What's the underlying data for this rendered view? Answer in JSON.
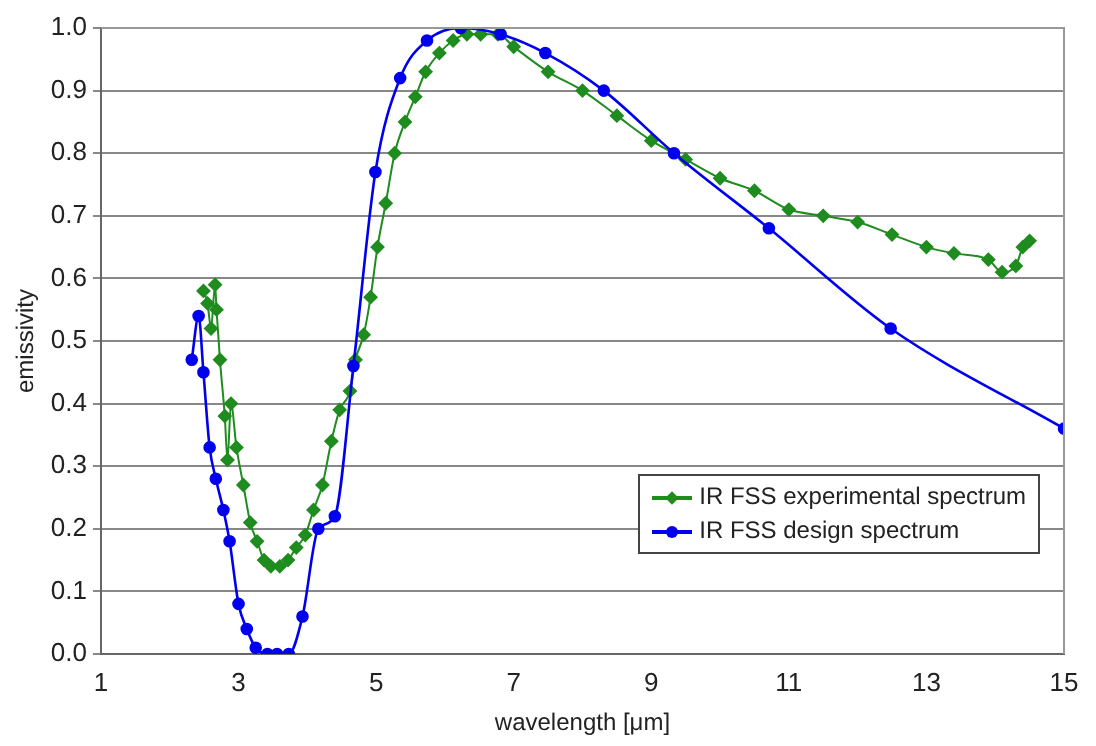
{
  "chart_data": {
    "type": "line",
    "xlabel": "wavelength [μm]",
    "ylabel": "emissivity",
    "xlim": [
      1,
      15
    ],
    "xticks": [
      1,
      3,
      5,
      7,
      9,
      11,
      13,
      15
    ],
    "ylim": [
      0,
      1
    ],
    "yticks": [
      {
        "value": 0,
        "label": "0.0"
      },
      {
        "value": 0.1,
        "label": "0.1"
      },
      {
        "value": 0.2,
        "label": "0.2"
      },
      {
        "value": 0.3,
        "label": "0.3"
      },
      {
        "value": 0.4,
        "label": "0.4"
      },
      {
        "value": 0.5,
        "label": "0.5"
      },
      {
        "value": 0.6,
        "label": "0.6"
      },
      {
        "value": 0.7,
        "label": "0.7"
      },
      {
        "value": 0.8,
        "label": "0.8"
      },
      {
        "value": 0.9,
        "label": "0.9"
      },
      {
        "value": 1,
        "label": "1.0"
      }
    ],
    "grid": "y",
    "legend": "bottom right",
    "line_style": "solid",
    "series": [
      {
        "name": "IR FSS experimental spectrum",
        "color": "#1e8c1e",
        "marker": "diamond",
        "x": [
          2.49,
          2.55,
          2.6,
          2.66,
          2.68,
          2.73,
          2.8,
          2.84,
          2.89,
          2.97,
          3.07,
          3.17,
          3.27,
          3.37,
          3.47,
          3.6,
          3.72,
          3.84,
          3.97,
          4.09,
          4.22,
          4.35,
          4.47,
          4.62,
          4.7,
          4.82,
          4.92,
          5.02,
          5.14,
          5.27,
          5.42,
          5.57,
          5.72,
          5.92,
          6.12,
          6.32,
          6.52,
          6.77,
          7.0,
          7.5,
          8.0,
          8.5,
          9.0,
          9.5,
          10.0,
          10.5,
          11.0,
          11.5,
          12.0,
          12.5,
          13.0,
          13.4,
          13.9,
          14.1,
          14.3,
          14.4,
          14.5
        ],
        "values": [
          0.58,
          0.56,
          0.52,
          0.59,
          0.55,
          0.47,
          0.38,
          0.31,
          0.4,
          0.33,
          0.27,
          0.21,
          0.18,
          0.15,
          0.14,
          0.14,
          0.15,
          0.17,
          0.19,
          0.23,
          0.27,
          0.34,
          0.39,
          0.42,
          0.47,
          0.51,
          0.57,
          0.65,
          0.72,
          0.8,
          0.85,
          0.89,
          0.93,
          0.96,
          0.98,
          0.99,
          0.99,
          0.99,
          0.97,
          0.93,
          0.9,
          0.86,
          0.82,
          0.79,
          0.76,
          0.74,
          0.71,
          0.7,
          0.69,
          0.67,
          0.65,
          0.64,
          0.63,
          0.61,
          0.62,
          0.65,
          0.66
        ]
      },
      {
        "name": "IR FSS design spectrum",
        "color": "#0000ee",
        "marker": "circle",
        "x": [
          2.32,
          2.42,
          2.49,
          2.58,
          2.67,
          2.78,
          2.87,
          3.0,
          3.12,
          3.25,
          3.42,
          3.56,
          3.73,
          3.93,
          4.16,
          4.4,
          4.67,
          4.99,
          5.35,
          5.74,
          6.23,
          6.81,
          7.46,
          8.31,
          9.33,
          10.71,
          12.48,
          15.0
        ],
        "values": [
          0.47,
          0.54,
          0.45,
          0.33,
          0.28,
          0.23,
          0.18,
          0.08,
          0.04,
          0.01,
          0.0,
          0.0,
          0.0,
          0.06,
          0.2,
          0.22,
          0.46,
          0.77,
          0.92,
          0.98,
          1.0,
          0.99,
          0.96,
          0.9,
          0.8,
          0.68,
          0.52,
          0.36
        ]
      }
    ]
  }
}
